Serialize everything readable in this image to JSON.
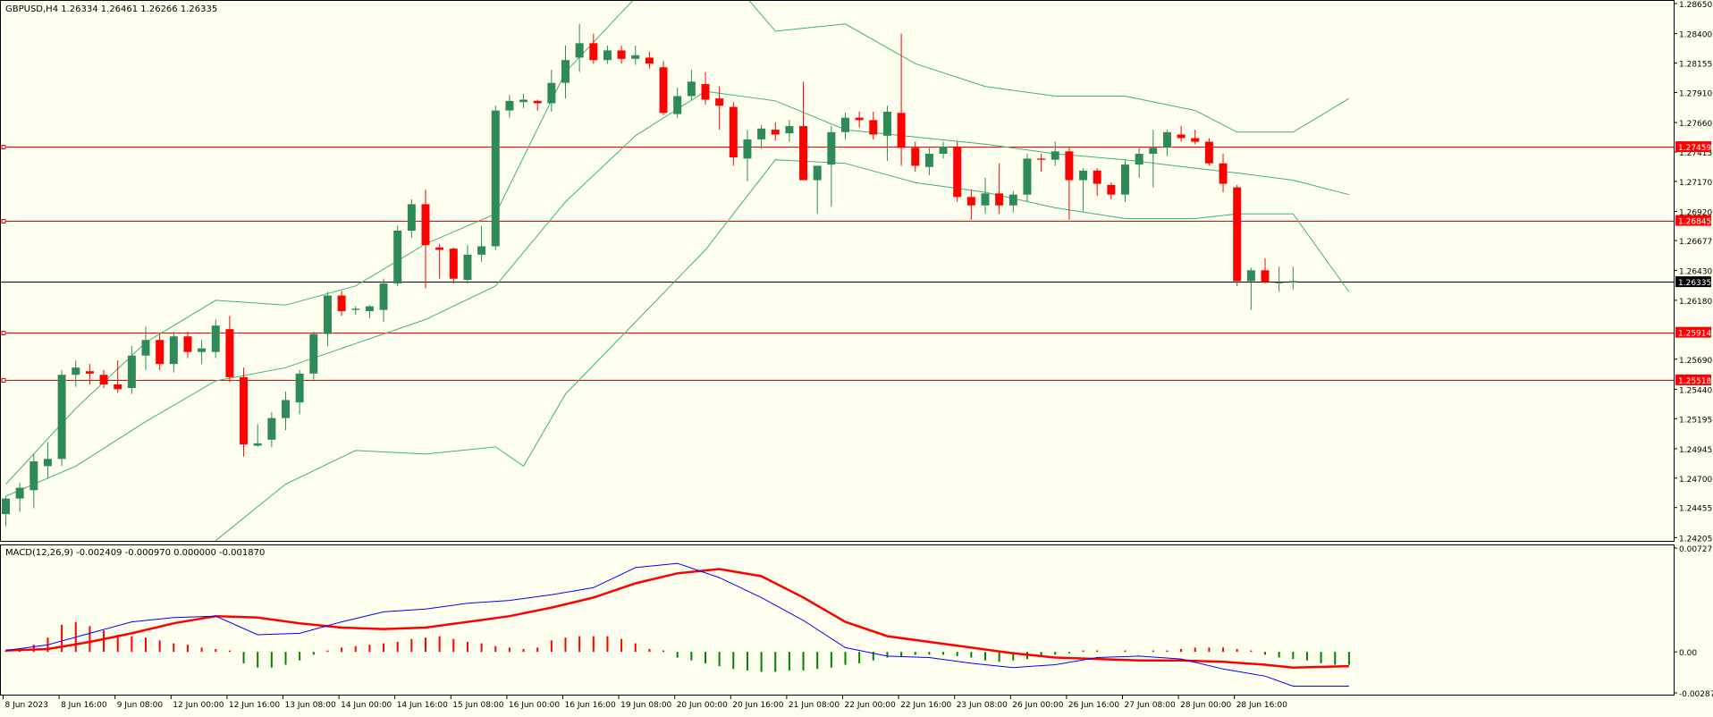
{
  "header": {
    "symbol_info": "GBPUSD,H4  1.26334 1.26461 1.26266 1.26335",
    "macd_info": "MACD(12,26,9) -0.002409 -0.000970 0.000000 -0.001870"
  },
  "colors": {
    "background": "#fffff0",
    "bull_candle": "#2e8b57",
    "bear_candle": "#ff0000",
    "bollinger": "#3cb371",
    "hline": "#ff0000",
    "current_price_line": "#000000",
    "macd_line": "#0000ff",
    "signal_line": "#ff0000",
    "hist_pos": "#ff0000",
    "hist_neg": "#008000"
  },
  "chart_data": [
    {
      "type": "candlestick",
      "symbol": "GBPUSD",
      "timeframe": "H4",
      "ylim": [
        1.242,
        1.2865
      ],
      "y_ticks": [
        "1.28650",
        "1.28400",
        "1.28155",
        "1.27910",
        "1.27660",
        "1.27415",
        "1.27170",
        "1.26920",
        "1.26677",
        "1.26430",
        "1.26180",
        "1.25690",
        "1.25440",
        "1.25195",
        "1.24945",
        "1.24700",
        "1.24455",
        "1.24205"
      ],
      "x_ticks": [
        "8 Jun 2023",
        "8 Jun 16:00",
        "9 Jun 08:00",
        "12 Jun 00:00",
        "12 Jun 16:00",
        "13 Jun 08:00",
        "14 Jun 00:00",
        "14 Jun 16:00",
        "15 Jun 08:00",
        "16 Jun 00:00",
        "16 Jun 16:00",
        "19 Jun 08:00",
        "20 Jun 00:00",
        "20 Jun 16:00",
        "21 Jun 08:00",
        "22 Jun 00:00",
        "22 Jun 16:00",
        "23 Jun 08:00",
        "26 Jun 00:00",
        "26 Jun 16:00",
        "27 Jun 08:00",
        "28 Jun 00:00",
        "28 Jun 16:00"
      ],
      "horizontal_levels": [
        {
          "value": 1.27459,
          "label": "1.27459"
        },
        {
          "value": 1.26845,
          "label": "1.26845"
        },
        {
          "value": 1.25914,
          "label": "1.25914"
        },
        {
          "value": 1.25518,
          "label": "1.25518"
        }
      ],
      "current_price": {
        "value": 1.26335,
        "label": "1.26335"
      },
      "candles": [
        [
          1.244,
          1.2455,
          1.243,
          1.2453
        ],
        [
          1.2453,
          1.2466,
          1.2442,
          1.2462
        ],
        [
          1.246,
          1.249,
          1.2445,
          1.2484
        ],
        [
          1.248,
          1.25,
          1.247,
          1.2486
        ],
        [
          1.2486,
          1.256,
          1.248,
          1.2556
        ],
        [
          1.2556,
          1.2568,
          1.2546,
          1.2562
        ],
        [
          1.2559,
          1.2565,
          1.2548,
          1.2557
        ],
        [
          1.2556,
          1.256,
          1.2545,
          1.2548
        ],
        [
          1.2548,
          1.2568,
          1.2541,
          1.2544
        ],
        [
          1.2545,
          1.258,
          1.254,
          1.2572
        ],
        [
          1.2572,
          1.2596,
          1.256,
          1.2585
        ],
        [
          1.2585,
          1.259,
          1.256,
          1.2565
        ],
        [
          1.2565,
          1.2592,
          1.2558,
          1.2588
        ],
        [
          1.2588,
          1.2592,
          1.257,
          1.2575
        ],
        [
          1.2575,
          1.2585,
          1.2565,
          1.2578
        ],
        [
          1.2575,
          1.2602,
          1.257,
          1.2597
        ],
        [
          1.2594,
          1.2605,
          1.255,
          1.2554
        ],
        [
          1.2554,
          1.2562,
          1.2488,
          1.2498
        ],
        [
          1.2497,
          1.2515,
          1.2496,
          1.2499
        ],
        [
          1.2502,
          1.2525,
          1.2496,
          1.252
        ],
        [
          1.252,
          1.2542,
          1.251,
          1.2535
        ],
        [
          1.2533,
          1.256,
          1.2523,
          1.2557
        ],
        [
          1.2557,
          1.2592,
          1.2552,
          1.259
        ],
        [
          1.259,
          1.2625,
          1.258,
          1.2622
        ],
        [
          1.2622,
          1.2626,
          1.2605,
          1.2609
        ],
        [
          1.261,
          1.2613,
          1.2606,
          1.2611
        ],
        [
          1.2609,
          1.2614,
          1.2603,
          1.2613
        ],
        [
          1.261,
          1.2636,
          1.26,
          1.2632
        ],
        [
          1.2632,
          1.268,
          1.263,
          1.2676
        ],
        [
          1.2676,
          1.2702,
          1.267,
          1.2698
        ],
        [
          1.2698,
          1.271,
          1.2628,
          1.2664
        ],
        [
          1.2662,
          1.2665,
          1.2636,
          1.266
        ],
        [
          1.2661,
          1.2662,
          1.2632,
          1.2636
        ],
        [
          1.2635,
          1.2664,
          1.2632,
          1.2656
        ],
        [
          1.2656,
          1.268,
          1.265,
          1.2663
        ],
        [
          1.2663,
          1.278,
          1.266,
          1.2776
        ],
        [
          1.2776,
          1.2789,
          1.277,
          1.2784
        ],
        [
          1.2783,
          1.279,
          1.2778,
          1.2785
        ],
        [
          1.2784,
          1.2785,
          1.2776,
          1.2782
        ],
        [
          1.2782,
          1.281,
          1.2775,
          1.2799
        ],
        [
          1.2799,
          1.283,
          1.2786,
          1.2818
        ],
        [
          1.282,
          1.2848,
          1.2808,
          1.2832
        ],
        [
          1.2832,
          1.284,
          1.2815,
          1.2818
        ],
        [
          1.2818,
          1.283,
          1.2815,
          1.2826
        ],
        [
          1.2826,
          1.283,
          1.2815,
          1.2819
        ],
        [
          1.2819,
          1.283,
          1.2814,
          1.2822
        ],
        [
          1.282,
          1.2825,
          1.2811,
          1.2815
        ],
        [
          1.2812,
          1.2817,
          1.2772,
          1.2774
        ],
        [
          1.2773,
          1.2795,
          1.277,
          1.2788
        ],
        [
          1.2788,
          1.281,
          1.2785,
          1.28
        ],
        [
          1.2798,
          1.2808,
          1.2781,
          1.2785
        ],
        [
          1.2786,
          1.2796,
          1.276,
          1.278
        ],
        [
          1.2779,
          1.2783,
          1.273,
          1.2737
        ],
        [
          1.2736,
          1.276,
          1.2717,
          1.2752
        ],
        [
          1.2752,
          1.2764,
          1.2744,
          1.2761
        ],
        [
          1.276,
          1.2766,
          1.2751,
          1.2756
        ],
        [
          1.2757,
          1.2768,
          1.275,
          1.2763
        ],
        [
          1.2763,
          1.28,
          1.272,
          1.2718
        ],
        [
          1.2718,
          1.273,
          1.269,
          1.273
        ],
        [
          1.2731,
          1.2763,
          1.2696,
          1.2758
        ],
        [
          1.2758,
          1.2774,
          1.2752,
          1.277
        ],
        [
          1.277,
          1.2775,
          1.2762,
          1.2768
        ],
        [
          1.2768,
          1.2775,
          1.2752,
          1.2756
        ],
        [
          1.2755,
          1.278,
          1.2734,
          1.2775
        ],
        [
          1.2774,
          1.284,
          1.273,
          1.2745
        ],
        [
          1.2745,
          1.275,
          1.2725,
          1.273
        ],
        [
          1.2729,
          1.2745,
          1.2722,
          1.274
        ],
        [
          1.274,
          1.275,
          1.2736,
          1.2746
        ],
        [
          1.2746,
          1.275,
          1.27,
          1.2704
        ],
        [
          1.2704,
          1.271,
          1.2685,
          1.2697
        ],
        [
          1.2697,
          1.272,
          1.269,
          1.2707
        ],
        [
          1.2707,
          1.2732,
          1.269,
          1.2697
        ],
        [
          1.2697,
          1.2709,
          1.2691,
          1.2706
        ],
        [
          1.2706,
          1.274,
          1.27,
          1.2736
        ],
        [
          1.2736,
          1.274,
          1.2725,
          1.2735
        ],
        [
          1.2735,
          1.275,
          1.273,
          1.2742
        ],
        [
          1.2742,
          1.2745,
          1.2685,
          1.2718
        ],
        [
          1.2718,
          1.2728,
          1.2692,
          1.2726
        ],
        [
          1.2726,
          1.2728,
          1.2705,
          1.2715
        ],
        [
          1.2714,
          1.2716,
          1.2702,
          1.2706
        ],
        [
          1.2706,
          1.2735,
          1.27,
          1.2731
        ],
        [
          1.2731,
          1.2745,
          1.272,
          1.274
        ],
        [
          1.274,
          1.276,
          1.2712,
          1.2745
        ],
        [
          1.2745,
          1.276,
          1.2738,
          1.2758
        ],
        [
          1.2756,
          1.2763,
          1.275,
          1.2753
        ],
        [
          1.2753,
          1.276,
          1.2748,
          1.275
        ],
        [
          1.275,
          1.2753,
          1.273,
          1.2732
        ],
        [
          1.2732,
          1.274,
          1.2708,
          1.2715
        ],
        [
          1.2712,
          1.2714,
          1.263,
          1.2634
        ],
        [
          1.2634,
          1.2645,
          1.261,
          1.2643
        ],
        [
          1.2643,
          1.2653,
          1.2632,
          1.2633
        ],
        [
          1.2633,
          1.2646,
          1.2625,
          1.2633
        ],
        [
          1.2633,
          1.2646,
          1.2627,
          1.2634
        ]
      ],
      "bollinger": {
        "upper": [
          [
            0,
            1.2465
          ],
          [
            5,
            1.2528
          ],
          [
            10,
            1.2583
          ],
          [
            15,
            1.2618
          ],
          [
            20,
            1.2614
          ],
          [
            25,
            1.263
          ],
          [
            30,
            1.2665
          ],
          [
            35,
            1.269
          ],
          [
            40,
            1.2808
          ],
          [
            45,
            1.287
          ],
          [
            50,
            1.291
          ],
          [
            55,
            1.2842
          ],
          [
            60,
            1.2848
          ],
          [
            65,
            1.2815
          ],
          [
            70,
            1.2796
          ],
          [
            75,
            1.2788
          ],
          [
            80,
            1.2788
          ],
          [
            85,
            1.2776
          ],
          [
            88,
            1.2758
          ],
          [
            92,
            1.2758
          ],
          [
            96,
            1.2786
          ]
        ],
        "middle": [
          [
            0,
            1.2455
          ],
          [
            5,
            1.248
          ],
          [
            10,
            1.2517
          ],
          [
            15,
            1.2551
          ],
          [
            20,
            1.2562
          ],
          [
            25,
            1.2582
          ],
          [
            30,
            1.2602
          ],
          [
            35,
            1.263
          ],
          [
            40,
            1.27
          ],
          [
            45,
            1.2755
          ],
          [
            50,
            1.2792
          ],
          [
            55,
            1.2784
          ],
          [
            60,
            1.276
          ],
          [
            65,
            1.2754
          ],
          [
            70,
            1.2748
          ],
          [
            75,
            1.274
          ],
          [
            80,
            1.2735
          ],
          [
            85,
            1.2728
          ],
          [
            88,
            1.2724
          ],
          [
            92,
            1.2718
          ],
          [
            96,
            1.2706
          ]
        ],
        "lower": [
          [
            15,
            1.2418
          ],
          [
            20,
            1.2465
          ],
          [
            25,
            1.2493
          ],
          [
            30,
            1.249
          ],
          [
            35,
            1.2496
          ],
          [
            37,
            1.248
          ],
          [
            40,
            1.254
          ],
          [
            45,
            1.26
          ],
          [
            50,
            1.266
          ],
          [
            55,
            1.2735
          ],
          [
            60,
            1.2732
          ],
          [
            65,
            1.2716
          ],
          [
            70,
            1.2708
          ],
          [
            75,
            1.2695
          ],
          [
            80,
            1.2686
          ],
          [
            85,
            1.2686
          ],
          [
            88,
            1.269
          ],
          [
            92,
            1.269
          ],
          [
            96,
            1.2625
          ]
        ]
      }
    },
    {
      "type": "macd",
      "title": "MACD(12,26,9)",
      "ylim": [
        -0.00287,
        0.007271
      ],
      "y_ticks": [
        "0.007271",
        "0.00",
        "-0.00287"
      ],
      "macd": [
        [
          0,
          0.0001
        ],
        [
          3,
          0.0005
        ],
        [
          6,
          0.0013
        ],
        [
          9,
          0.0021
        ],
        [
          12,
          0.0024
        ],
        [
          15,
          0.0025
        ],
        [
          18,
          0.0012
        ],
        [
          21,
          0.0013
        ],
        [
          24,
          0.0021
        ],
        [
          27,
          0.0028
        ],
        [
          30,
          0.003
        ],
        [
          33,
          0.0034
        ],
        [
          36,
          0.0036
        ],
        [
          39,
          0.004
        ],
        [
          42,
          0.0045
        ],
        [
          45,
          0.0059
        ],
        [
          48,
          0.0062
        ],
        [
          51,
          0.0052
        ],
        [
          54,
          0.0038
        ],
        [
          57,
          0.0022
        ],
        [
          60,
          0.0003
        ],
        [
          63,
          -0.0003
        ],
        [
          66,
          -0.0004
        ],
        [
          69,
          -0.0008
        ],
        [
          72,
          -0.0011
        ],
        [
          75,
          -0.0009
        ],
        [
          78,
          -0.0004
        ],
        [
          81,
          -0.0003
        ],
        [
          84,
          -0.0005
        ],
        [
          87,
          -0.0012
        ],
        [
          90,
          -0.0017
        ],
        [
          92,
          -0.0024
        ],
        [
          96,
          -0.0024
        ]
      ],
      "signal": [
        [
          0,
          0.0001
        ],
        [
          3,
          0.0002
        ],
        [
          6,
          0.0007
        ],
        [
          9,
          0.0013
        ],
        [
          12,
          0.002
        ],
        [
          15,
          0.0025
        ],
        [
          18,
          0.0024
        ],
        [
          21,
          0.002
        ],
        [
          24,
          0.0017
        ],
        [
          27,
          0.0016
        ],
        [
          30,
          0.0017
        ],
        [
          33,
          0.0021
        ],
        [
          36,
          0.0025
        ],
        [
          39,
          0.0031
        ],
        [
          42,
          0.0038
        ],
        [
          45,
          0.0048
        ],
        [
          48,
          0.0055
        ],
        [
          51,
          0.0058
        ],
        [
          54,
          0.0053
        ],
        [
          57,
          0.0038
        ],
        [
          60,
          0.0021
        ],
        [
          63,
          0.0011
        ],
        [
          66,
          0.0007
        ],
        [
          69,
          0.0003
        ],
        [
          72,
          -0.0001
        ],
        [
          75,
          -0.0004
        ],
        [
          78,
          -0.0005
        ],
        [
          81,
          -0.0006
        ],
        [
          84,
          -0.0006
        ],
        [
          87,
          -0.0007
        ],
        [
          90,
          -0.0009
        ],
        [
          92,
          -0.0011
        ],
        [
          96,
          -0.001
        ]
      ],
      "histogram": [
        0.0001,
        0.0002,
        0.0005,
        0.001,
        0.0019,
        0.0021,
        0.0018,
        0.0015,
        0.0012,
        0.0011,
        0.001,
        0.0008,
        0.0006,
        0.0005,
        0.0003,
        0.0002,
        0.0001,
        -0.0008,
        -0.0011,
        -0.0011,
        -0.0009,
        -0.0006,
        -0.0002,
        0.0001,
        0.0003,
        0.0004,
        0.0005,
        0.0006,
        0.0007,
        0.0009,
        0.001,
        0.0011,
        0.0009,
        0.0007,
        0.0006,
        0.0004,
        0.0003,
        0.0002,
        0.0003,
        0.0008,
        0.001,
        0.0011,
        0.0011,
        0.0011,
        0.0009,
        0.0006,
        0.0002,
        0.0001,
        -0.0004,
        -0.0006,
        -0.0008,
        -0.001,
        -0.0012,
        -0.0013,
        -0.0014,
        -0.0014,
        -0.0013,
        -0.0013,
        -0.0012,
        -0.0011,
        -0.0009,
        -0.0008,
        -0.0006,
        -0.0004,
        -0.0003,
        -0.0002,
        -0.0002,
        -0.0002,
        -0.0003,
        -0.0004,
        -0.0006,
        -0.0007,
        -0.0006,
        -0.0005,
        -0.0003,
        -0.0002,
        -0.0001,
        0.0001,
        0.0001,
        0.0,
        0.0001,
        0.0,
        0.0001,
        0.0001,
        0.0002,
        0.0003,
        0.0003,
        0.0003,
        0.0002,
        0.0001,
        -0.0002,
        -0.0004,
        -0.0005,
        -0.0006,
        -0.0008,
        -0.0009,
        -0.0009
      ]
    }
  ]
}
